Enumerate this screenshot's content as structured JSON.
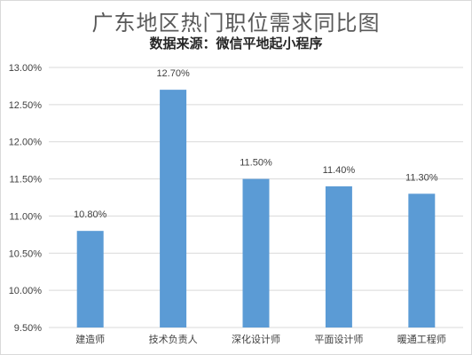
{
  "chart_data": {
    "type": "bar",
    "title": "广东地区热门职位需求同比图",
    "subtitle": "数据来源：微信平地起小程序",
    "categories": [
      "建造师",
      "技术负责人",
      "深化设计师",
      "平面设计师",
      "暖通工程师"
    ],
    "values": [
      10.8,
      12.7,
      11.5,
      11.4,
      11.3
    ],
    "data_labels": [
      "10.80%",
      "12.70%",
      "11.50%",
      "11.40%",
      "11.30%"
    ],
    "ylim": [
      9.5,
      13.0
    ],
    "yticks": [
      9.5,
      10.0,
      10.5,
      11.0,
      11.5,
      12.0,
      12.5,
      13.0
    ],
    "ytick_labels": [
      "9.50%",
      "10.00%",
      "10.50%",
      "11.00%",
      "11.50%",
      "12.00%",
      "12.50%",
      "13.00%"
    ],
    "grid": true,
    "legend": "none",
    "bar_color": "#5b9bd5",
    "grid_color": "#d9d9d9",
    "xlabel": "",
    "ylabel": ""
  }
}
